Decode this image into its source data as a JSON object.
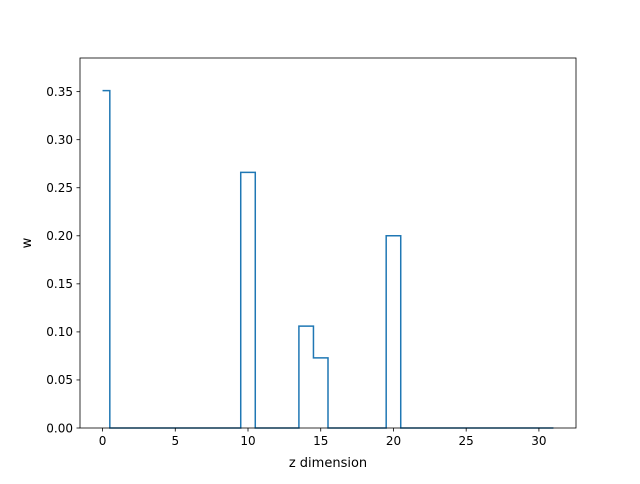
{
  "chart_data": {
    "type": "line",
    "drawstyle": "steps-mid",
    "title": "",
    "xlabel": "z dimension",
    "ylabel": "w",
    "xlim": [
      -1.55,
      32.55
    ],
    "ylim": [
      0,
      0.385
    ],
    "xticks": [
      0,
      5,
      10,
      15,
      20,
      25,
      30
    ],
    "xtick_labels": [
      "0",
      "5",
      "10",
      "15",
      "20",
      "25",
      "30"
    ],
    "yticks": [
      0.0,
      0.05,
      0.1,
      0.15,
      0.2,
      0.25,
      0.3,
      0.35
    ],
    "ytick_labels": [
      "0.00",
      "0.05",
      "0.10",
      "0.15",
      "0.20",
      "0.25",
      "0.30",
      "0.35"
    ],
    "grid": false,
    "legend": "none",
    "series": [
      {
        "color": "#1f77b4",
        "x": [
          0,
          1,
          2,
          3,
          4,
          5,
          6,
          7,
          8,
          9,
          10,
          11,
          12,
          13,
          14,
          15,
          16,
          17,
          18,
          19,
          20,
          21,
          22,
          23,
          24,
          25,
          26,
          27,
          28,
          29,
          30,
          31
        ],
        "y": [
          0.351,
          0,
          0,
          0,
          0,
          0,
          0,
          0,
          0,
          0,
          0.266,
          0,
          0,
          0,
          0.106,
          0.073,
          0,
          0,
          0,
          0,
          0.2,
          0,
          0,
          0,
          0,
          0,
          0,
          0,
          0,
          0,
          0,
          0
        ]
      }
    ]
  }
}
